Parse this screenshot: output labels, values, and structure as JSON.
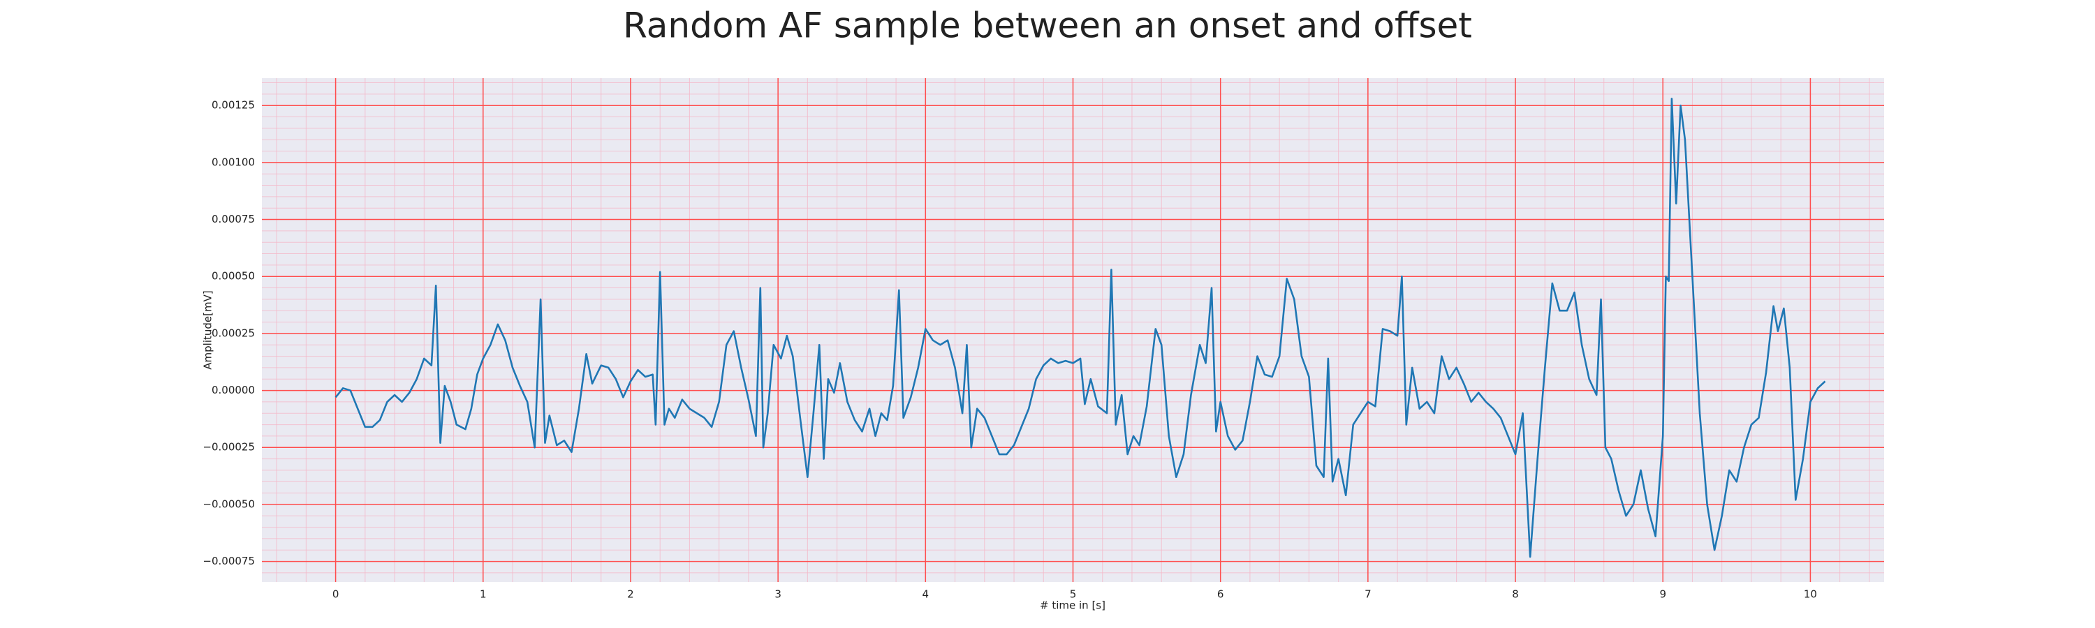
{
  "chart_data": {
    "type": "line",
    "title": "Random AF sample between an onset and offset",
    "xlabel": "# time in [s]",
    "ylabel": "Amplitude[mV]",
    "color": "#1f77b4",
    "background": "#eaeaf2",
    "grid": true,
    "grid_color": "#ff4d4d",
    "minor_grid": true,
    "minor_grid_color": "#f4b8c8",
    "xlim": [
      -0.5,
      10.5
    ],
    "ylim": [
      -0.00084,
      0.00137
    ],
    "xticks": [
      0,
      1,
      2,
      3,
      4,
      5,
      6,
      7,
      8,
      9,
      10
    ],
    "yticks": [
      {
        "value": -0.00075,
        "label": "−0.00075"
      },
      {
        "value": -0.0005,
        "label": "−0.00050"
      },
      {
        "value": -0.00025,
        "label": "−0.00025"
      },
      {
        "value": 0,
        "label": "0.00000"
      },
      {
        "value": 0.00025,
        "label": "0.00025"
      },
      {
        "value": 0.0005,
        "label": "0.00050"
      },
      {
        "value": 0.00075,
        "label": "0.00075"
      },
      {
        "value": 0.001,
        "label": "0.00100"
      },
      {
        "value": 0.00125,
        "label": "0.00125"
      }
    ],
    "x": [
      0.0,
      0.05,
      0.1,
      0.15,
      0.2,
      0.25,
      0.3,
      0.35,
      0.4,
      0.45,
      0.5,
      0.55,
      0.6,
      0.65,
      0.68,
      0.71,
      0.74,
      0.78,
      0.82,
      0.88,
      0.92,
      0.96,
      1.0,
      1.05,
      1.1,
      1.15,
      1.2,
      1.25,
      1.3,
      1.35,
      1.39,
      1.42,
      1.45,
      1.5,
      1.55,
      1.6,
      1.65,
      1.7,
      1.74,
      1.8,
      1.85,
      1.9,
      1.95,
      2.0,
      2.05,
      2.1,
      2.15,
      2.17,
      2.2,
      2.23,
      2.26,
      2.3,
      2.35,
      2.4,
      2.45,
      2.5,
      2.55,
      2.6,
      2.65,
      2.7,
      2.75,
      2.8,
      2.85,
      2.88,
      2.9,
      2.93,
      2.97,
      3.02,
      3.06,
      3.1,
      3.15,
      3.2,
      3.24,
      3.28,
      3.31,
      3.34,
      3.38,
      3.42,
      3.47,
      3.52,
      3.57,
      3.62,
      3.66,
      3.7,
      3.74,
      3.78,
      3.82,
      3.85,
      3.9,
      3.95,
      4.0,
      4.05,
      4.1,
      4.15,
      4.2,
      4.25,
      4.28,
      4.31,
      4.35,
      4.4,
      4.45,
      4.5,
      4.55,
      4.6,
      4.65,
      4.7,
      4.75,
      4.8,
      4.85,
      4.9,
      4.95,
      5.0,
      5.05,
      5.08,
      5.12,
      5.17,
      5.23,
      5.26,
      5.29,
      5.33,
      5.37,
      5.41,
      5.45,
      5.5,
      5.56,
      5.6,
      5.65,
      5.7,
      5.75,
      5.8,
      5.86,
      5.9,
      5.94,
      5.97,
      6.0,
      6.05,
      6.1,
      6.15,
      6.2,
      6.25,
      6.3,
      6.35,
      6.4,
      6.45,
      6.5,
      6.55,
      6.6,
      6.65,
      6.7,
      6.73,
      6.76,
      6.8,
      6.85,
      6.9,
      6.95,
      7.0,
      7.05,
      7.1,
      7.15,
      7.2,
      7.23,
      7.26,
      7.3,
      7.35,
      7.4,
      7.45,
      7.5,
      7.55,
      7.6,
      7.65,
      7.7,
      7.75,
      7.8,
      7.85,
      7.9,
      7.95,
      8.0,
      8.05,
      8.1,
      8.15,
      8.2,
      8.25,
      8.3,
      8.35,
      8.4,
      8.45,
      8.5,
      8.55,
      8.58,
      8.61,
      8.65,
      8.7,
      8.75,
      8.8,
      8.85,
      8.9,
      8.95,
      9.0,
      9.02,
      9.04,
      9.06,
      9.09,
      9.12,
      9.15,
      9.2,
      9.25,
      9.3,
      9.35,
      9.4,
      9.45,
      9.5,
      9.55,
      9.6,
      9.65,
      9.7,
      9.75,
      9.78,
      9.82,
      9.86,
      9.9,
      9.95,
      10.0,
      10.05,
      10.1
    ],
    "values": [
      -3e-05,
      1e-05,
      0.0,
      -8e-05,
      -0.00016,
      -0.00016,
      -0.00013,
      -5e-05,
      -2e-05,
      -5e-05,
      -1e-05,
      5e-05,
      0.00014,
      0.00011,
      0.00046,
      -0.00023,
      2e-05,
      -5e-05,
      -0.00015,
      -0.00017,
      -8e-05,
      7e-05,
      0.00014,
      0.0002,
      0.00029,
      0.00022,
      0.0001,
      2e-05,
      -5e-05,
      -0.00025,
      0.0004,
      -0.00023,
      -0.00011,
      -0.00024,
      -0.00022,
      -0.00027,
      -8e-05,
      0.00016,
      3e-05,
      0.00011,
      0.0001,
      5e-05,
      -3e-05,
      4e-05,
      9e-05,
      6e-05,
      7e-05,
      -0.00015,
      0.00052,
      -0.00015,
      -8e-05,
      -0.00012,
      -4e-05,
      -8e-05,
      -0.0001,
      -0.00012,
      -0.00016,
      -5e-05,
      0.0002,
      0.00026,
      0.0001,
      -4e-05,
      -0.0002,
      0.00045,
      -0.00025,
      -0.0001,
      0.0002,
      0.00014,
      0.00024,
      0.00015,
      -0.00012,
      -0.00038,
      -0.0001,
      0.0002,
      -0.0003,
      5e-05,
      -1e-05,
      0.00012,
      -5e-05,
      -0.00013,
      -0.00018,
      -8e-05,
      -0.0002,
      -0.0001,
      -0.00013,
      2e-05,
      0.00044,
      -0.00012,
      -3e-05,
      0.0001,
      0.00027,
      0.00022,
      0.0002,
      0.00022,
      0.0001,
      -0.0001,
      0.0002,
      -0.00025,
      -8e-05,
      -0.00012,
      -0.0002,
      -0.00028,
      -0.00028,
      -0.00024,
      -0.00016,
      -8e-05,
      5e-05,
      0.00011,
      0.00014,
      0.00012,
      0.00013,
      0.00012,
      0.00014,
      -6e-05,
      5e-05,
      -7e-05,
      -0.0001,
      0.00053,
      -0.00015,
      -2e-05,
      -0.00028,
      -0.0002,
      -0.00024,
      -7e-05,
      0.00027,
      0.0002,
      -0.0002,
      -0.00038,
      -0.00028,
      -2e-05,
      0.0002,
      0.00012,
      0.00045,
      -0.00018,
      -5e-05,
      -0.0002,
      -0.00026,
      -0.00022,
      -5e-05,
      0.00015,
      7e-05,
      6e-05,
      0.00015,
      0.00049,
      0.0004,
      0.00015,
      6e-05,
      -0.00033,
      -0.00038,
      0.00014,
      -0.0004,
      -0.0003,
      -0.00046,
      -0.00015,
      -0.0001,
      -5e-05,
      -7e-05,
      0.00027,
      0.00026,
      0.00024,
      0.0005,
      -0.00015,
      0.0001,
      -8e-05,
      -5e-05,
      -0.0001,
      0.00015,
      5e-05,
      0.0001,
      3e-05,
      -5e-05,
      -1e-05,
      -5e-05,
      -8e-05,
      -0.00012,
      -0.0002,
      -0.00028,
      -0.0001,
      -0.00073,
      -0.0003,
      0.0001,
      0.00047,
      0.00035,
      0.00035,
      0.00043,
      0.0002,
      5e-05,
      -2e-05,
      0.0004,
      -0.00025,
      -0.0003,
      -0.00044,
      -0.00055,
      -0.0005,
      -0.00035,
      -0.00052,
      -0.00064,
      -0.0002,
      0.0005,
      0.00048,
      0.00128,
      0.00082,
      0.00125,
      0.0011,
      0.0005,
      -0.0001,
      -0.0005,
      -0.0007,
      -0.00055,
      -0.00035,
      -0.0004,
      -0.00025,
      -0.00015,
      -0.00012,
      8e-05,
      0.00037,
      0.00026,
      0.00036,
      0.0001,
      -0.00048,
      -0.0003,
      -5e-05,
      1e-05,
      4e-05
    ]
  }
}
